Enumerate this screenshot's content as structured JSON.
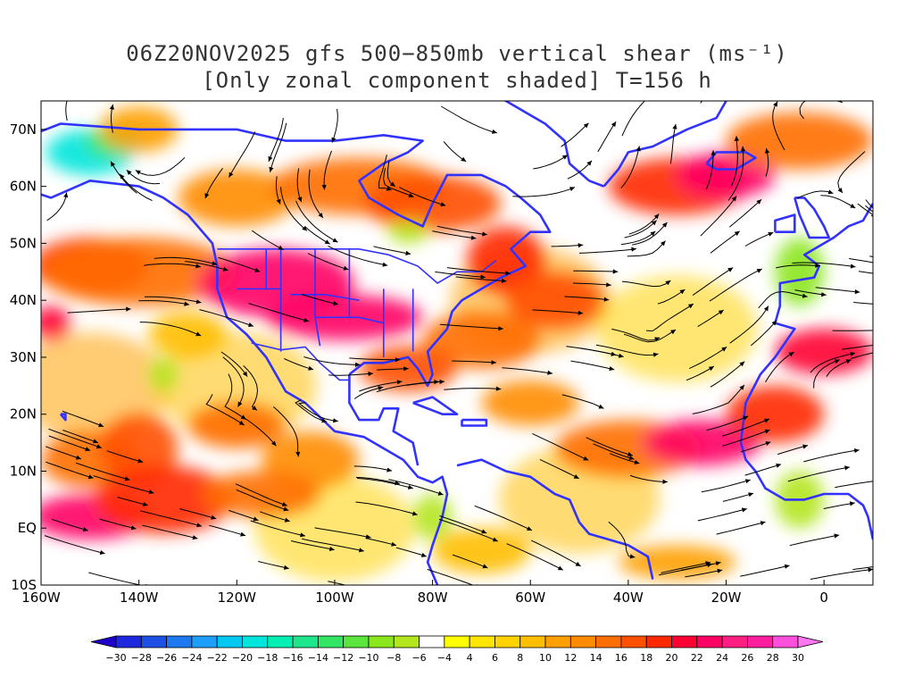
{
  "title": {
    "line1": "06Z20NOV2025 gfs 500−850mb vertical shear (ms⁻¹)",
    "line2": "[Only zonal component shaded] T=156 h"
  },
  "map": {
    "lon_range": [
      -160,
      10
    ],
    "lat_range": [
      -10,
      75
    ],
    "x_ticks": [
      {
        "lon": -160,
        "label": "160W"
      },
      {
        "lon": -140,
        "label": "140W"
      },
      {
        "lon": -120,
        "label": "120W"
      },
      {
        "lon": -100,
        "label": "100W"
      },
      {
        "lon": -80,
        "label": "80W"
      },
      {
        "lon": -60,
        "label": "60W"
      },
      {
        "lon": -40,
        "label": "40W"
      },
      {
        "lon": -20,
        "label": "20W"
      },
      {
        "lon": 0,
        "label": "0"
      }
    ],
    "y_ticks": [
      {
        "lat": 70,
        "label": "70N"
      },
      {
        "lat": 60,
        "label": "60N"
      },
      {
        "lat": 50,
        "label": "50N"
      },
      {
        "lat": 40,
        "label": "40N"
      },
      {
        "lat": 30,
        "label": "30N"
      },
      {
        "lat": 20,
        "label": "20N"
      },
      {
        "lat": 10,
        "label": "10N"
      },
      {
        "lat": 0,
        "label": "EQ"
      },
      {
        "lat": -10,
        "label": "10S"
      }
    ],
    "shear_regions": [
      {
        "lon": -150,
        "lat": 66,
        "rlon": 9,
        "rlat": 4,
        "value": -20
      },
      {
        "lon": -145,
        "lat": 68,
        "rlon": 6,
        "rlat": 3,
        "value": -14
      },
      {
        "lon": -150,
        "lat": 46,
        "rlon": 12,
        "rlat": 5,
        "value": 18
      },
      {
        "lon": -140,
        "lat": 45,
        "rlon": 20,
        "rlat": 6,
        "value": 14
      },
      {
        "lon": -112,
        "lat": 43,
        "rlon": 16,
        "rlat": 6,
        "value": 22
      },
      {
        "lon": -98,
        "lat": 37,
        "rlon": 16,
        "rlat": 4,
        "value": 22
      },
      {
        "lon": -120,
        "lat": 58,
        "rlon": 12,
        "rlat": 5,
        "value": 12
      },
      {
        "lon": -95,
        "lat": 60,
        "rlon": 18,
        "rlat": 5,
        "value": 14
      },
      {
        "lon": -80,
        "lat": 57,
        "rlon": 14,
        "rlat": 5,
        "value": 16
      },
      {
        "lon": -65,
        "lat": 47,
        "rlon": 8,
        "rlat": 6,
        "value": 18
      },
      {
        "lon": -55,
        "lat": 40,
        "rlon": 10,
        "rlat": 5,
        "value": 16
      },
      {
        "lon": -70,
        "lat": 33,
        "rlon": 12,
        "rlat": 5,
        "value": 14
      },
      {
        "lon": -85,
        "lat": 28,
        "rlon": 10,
        "rlat": 4,
        "value": 16
      },
      {
        "lon": -30,
        "lat": 60,
        "rlon": 14,
        "rlat": 5,
        "value": 18
      },
      {
        "lon": -20,
        "lat": 62,
        "rlon": 10,
        "rlat": 4,
        "value": 22
      },
      {
        "lon": -5,
        "lat": 68,
        "rlon": 15,
        "rlat": 5,
        "value": 14
      },
      {
        "lon": -140,
        "lat": 70,
        "rlon": 8,
        "rlat": 4,
        "value": 10
      },
      {
        "lon": -150,
        "lat": 12,
        "rlon": 10,
        "rlat": 5,
        "value": 14
      },
      {
        "lon": -140,
        "lat": 14,
        "rlon": 8,
        "rlat": 6,
        "value": 16
      },
      {
        "lon": -150,
        "lat": 2,
        "rlon": 12,
        "rlat": 4,
        "value": 22
      },
      {
        "lon": -135,
        "lat": 5,
        "rlon": 14,
        "rlat": 6,
        "value": 18
      },
      {
        "lon": -120,
        "lat": 18,
        "rlon": 10,
        "rlat": 4,
        "value": 14
      },
      {
        "lon": -105,
        "lat": 12,
        "rlon": 10,
        "rlat": 5,
        "value": 12
      },
      {
        "lon": -115,
        "lat": 6,
        "rlon": 12,
        "rlat": 4,
        "value": 14
      },
      {
        "lon": -40,
        "lat": 14,
        "rlon": 15,
        "rlat": 5,
        "value": 14
      },
      {
        "lon": -25,
        "lat": 15,
        "rlon": 12,
        "rlat": 4,
        "value": 22
      },
      {
        "lon": -10,
        "lat": 20,
        "rlon": 10,
        "rlat": 5,
        "value": 18
      },
      {
        "lon": 0,
        "lat": 31,
        "rlon": 10,
        "rlat": 4,
        "value": 20
      },
      {
        "lon": -60,
        "lat": 22,
        "rlon": 10,
        "rlat": 4,
        "value": 12
      },
      {
        "lon": -130,
        "lat": 34,
        "rlon": 8,
        "rlat": 4,
        "value": 8
      },
      {
        "lon": -158,
        "lat": 36,
        "rlon": 4,
        "rlat": 3,
        "value": 20
      },
      {
        "lon": -80,
        "lat": 2,
        "rlon": 4,
        "rlat": 4,
        "value": -8
      },
      {
        "lon": -5,
        "lat": 5,
        "rlon": 5,
        "rlat": 5,
        "value": -8
      },
      {
        "lon": -5,
        "lat": 45,
        "rlon": 5,
        "rlat": 6,
        "value": -10
      },
      {
        "lon": -85,
        "lat": 52,
        "rlon": 4,
        "rlat": 2,
        "value": -8
      },
      {
        "lon": -135,
        "lat": 27,
        "rlon": 3,
        "rlat": 3,
        "value": -8
      },
      {
        "lon": -70,
        "lat": -4,
        "rlon": 10,
        "rlat": 4,
        "value": 8
      },
      {
        "lon": -30,
        "lat": -6,
        "rlon": 12,
        "rlat": 3,
        "value": 10
      }
    ],
    "streamline_count": 210
  },
  "colorbar": {
    "levels": [
      -30,
      -28,
      -26,
      -24,
      -22,
      -20,
      -18,
      -16,
      -14,
      -12,
      -10,
      -8,
      -6,
      -4,
      4,
      6,
      8,
      10,
      12,
      14,
      16,
      18,
      20,
      22,
      24,
      26,
      28,
      30
    ],
    "colors": [
      "#1e00c8",
      "#1e28dc",
      "#1e50e6",
      "#1e78f0",
      "#1ea0fa",
      "#00c8f0",
      "#00e6dc",
      "#00f0b4",
      "#1ee68c",
      "#32e664",
      "#5ae63c",
      "#8ce61e",
      "#b4e61e",
      "#ffffff",
      "#ffff00",
      "#ffe600",
      "#ffd200",
      "#ffbe00",
      "#ffa000",
      "#ff8c00",
      "#ff6e00",
      "#ff5000",
      "#ff2800",
      "#ff0032",
      "#ff0064",
      "#ff1e82",
      "#ff1ea0",
      "#ff50dc",
      "#ff78f0"
    ],
    "labels": [
      "−30",
      "−28",
      "−26",
      "−24",
      "−22",
      "−20",
      "−18",
      "−16",
      "−14",
      "−12",
      "−10",
      "−8",
      "−6",
      "−4",
      "4",
      "6",
      "8",
      "10",
      "12",
      "14",
      "16",
      "18",
      "20",
      "22",
      "24",
      "26",
      "28",
      "30"
    ]
  },
  "colors": {
    "coastline": "#3232ff",
    "streamline": "#000000",
    "grid": "#999999"
  }
}
